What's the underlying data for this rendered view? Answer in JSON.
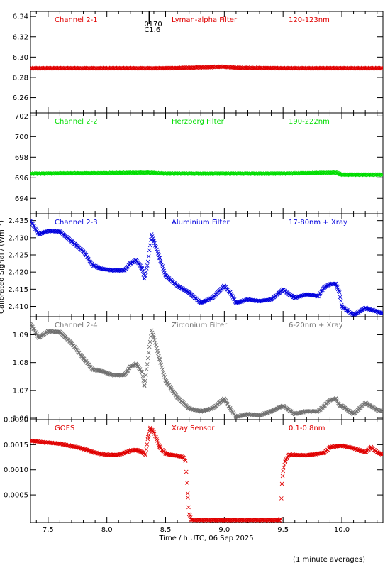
{
  "ylabel": "Calibrated Signal / (Wm⁻²)",
  "xlabel": "Time / h UTC, 06 Sep 2025",
  "footnote": "(1 minute averages)",
  "x_ticks": [
    "7.5",
    "8.0",
    "8.5",
    "9.0",
    "9.5",
    "10.0"
  ],
  "flare": {
    "time": 8.36,
    "label_top": "0170",
    "label_bottom": "C1.6"
  },
  "chart_data": [
    {
      "type": "scatter",
      "channel": "Channel 2-1",
      "filter": "Lyman-alpha Filter",
      "band": "120-123nm",
      "color": "#e00000",
      "xlim": [
        7.35,
        10.35
      ],
      "ylim": [
        6.245,
        6.345
      ],
      "yticks": [
        6.26,
        6.28,
        6.3,
        6.32,
        6.34
      ],
      "ytick_labels": [
        "6.26",
        "6.28",
        "6.30",
        "6.32",
        "6.34"
      ],
      "x": [
        7.35,
        10.35
      ],
      "y": [
        6.289,
        6.289
      ],
      "points": [
        [
          7.35,
          6.289
        ],
        [
          8.0,
          6.289
        ],
        [
          8.5,
          6.289
        ],
        [
          9.0,
          6.2905
        ],
        [
          9.1,
          6.2895
        ],
        [
          9.5,
          6.289
        ],
        [
          10.0,
          6.289
        ],
        [
          10.35,
          6.289
        ]
      ]
    },
    {
      "type": "scatter",
      "channel": "Channel 2-2",
      "filter": "Herzberg Filter",
      "band": "190-222nm",
      "color": "#00dd00",
      "xlim": [
        7.35,
        10.35
      ],
      "ylim": [
        692.5,
        702.3
      ],
      "yticks": [
        694,
        696,
        698,
        700,
        702
      ],
      "ytick_labels": [
        "694",
        "696",
        "698",
        "700",
        "702"
      ],
      "points": [
        [
          7.35,
          696.4
        ],
        [
          8.0,
          696.45
        ],
        [
          8.35,
          696.5
        ],
        [
          8.5,
          696.4
        ],
        [
          9.0,
          696.4
        ],
        [
          9.5,
          696.4
        ],
        [
          9.95,
          696.5
        ],
        [
          10.0,
          696.3
        ],
        [
          10.35,
          696.3
        ]
      ]
    },
    {
      "type": "scatter",
      "channel": "Channel 2-3",
      "filter": "Aluminium Filter",
      "band": "17-80nm + Xray",
      "color": "#0000dd",
      "xlim": [
        7.35,
        10.35
      ],
      "ylim": [
        2.407,
        2.437
      ],
      "yticks": [
        2.41,
        2.415,
        2.42,
        2.425,
        2.43,
        2.435
      ],
      "ytick_labels": [
        "2.410",
        "2.415",
        "2.420",
        "2.425",
        "2.430",
        "2.435"
      ],
      "points": [
        [
          7.35,
          2.435
        ],
        [
          7.42,
          2.431
        ],
        [
          7.5,
          2.432
        ],
        [
          7.6,
          2.4318
        ],
        [
          7.7,
          2.429
        ],
        [
          7.8,
          2.426
        ],
        [
          7.88,
          2.422
        ],
        [
          7.95,
          2.421
        ],
        [
          8.05,
          2.4205
        ],
        [
          8.15,
          2.4205
        ],
        [
          8.2,
          2.4225
        ],
        [
          8.25,
          2.4235
        ],
        [
          8.3,
          2.421
        ],
        [
          8.32,
          2.418
        ],
        [
          8.35,
          2.423
        ],
        [
          8.38,
          2.431
        ],
        [
          8.4,
          2.429
        ],
        [
          8.45,
          2.424
        ],
        [
          8.5,
          2.419
        ],
        [
          8.6,
          2.416
        ],
        [
          8.7,
          2.414
        ],
        [
          8.75,
          2.4125
        ],
        [
          8.8,
          2.411
        ],
        [
          8.9,
          2.4125
        ],
        [
          9.0,
          2.416
        ],
        [
          9.05,
          2.414
        ],
        [
          9.1,
          2.411
        ],
        [
          9.2,
          2.412
        ],
        [
          9.3,
          2.4115
        ],
        [
          9.4,
          2.412
        ],
        [
          9.5,
          2.415
        ],
        [
          9.55,
          2.4135
        ],
        [
          9.6,
          2.4125
        ],
        [
          9.7,
          2.4135
        ],
        [
          9.8,
          2.413
        ],
        [
          9.85,
          2.4155
        ],
        [
          9.9,
          2.4165
        ],
        [
          9.95,
          2.4165
        ],
        [
          9.98,
          2.414
        ],
        [
          10.0,
          2.41
        ],
        [
          10.1,
          2.4075
        ],
        [
          10.2,
          2.4095
        ],
        [
          10.3,
          2.4085
        ],
        [
          10.35,
          2.408
        ]
      ]
    },
    {
      "type": "scatter",
      "channel": "Channel 2-4",
      "filter": "Zirconium Filter",
      "band": "6-20nm + Xray",
      "color": "#707070",
      "xlim": [
        7.35,
        10.35
      ],
      "ylim": [
        1.0595,
        1.0965
      ],
      "yticks": [
        1.06,
        1.07,
        1.08,
        1.09
      ],
      "ytick_labels": [
        "1.06",
        "1.07",
        "1.08",
        "1.09"
      ],
      "points": [
        [
          7.35,
          1.094
        ],
        [
          7.42,
          1.089
        ],
        [
          7.5,
          1.0912
        ],
        [
          7.6,
          1.091
        ],
        [
          7.7,
          1.087
        ],
        [
          7.8,
          1.0815
        ],
        [
          7.88,
          1.0775
        ],
        [
          7.95,
          1.077
        ],
        [
          8.05,
          1.0755
        ],
        [
          8.15,
          1.0755
        ],
        [
          8.2,
          1.0785
        ],
        [
          8.25,
          1.0795
        ],
        [
          8.3,
          1.0765
        ],
        [
          8.32,
          1.0715
        ],
        [
          8.35,
          1.0815
        ],
        [
          8.38,
          1.0915
        ],
        [
          8.4,
          1.089
        ],
        [
          8.45,
          1.081
        ],
        [
          8.5,
          1.0735
        ],
        [
          8.6,
          1.0675
        ],
        [
          8.7,
          1.0635
        ],
        [
          8.75,
          1.063
        ],
        [
          8.8,
          1.0625
        ],
        [
          8.9,
          1.0635
        ],
        [
          9.0,
          1.067
        ],
        [
          9.05,
          1.0635
        ],
        [
          9.1,
          1.0605
        ],
        [
          9.2,
          1.0615
        ],
        [
          9.3,
          1.061
        ],
        [
          9.4,
          1.0625
        ],
        [
          9.5,
          1.0645
        ],
        [
          9.55,
          1.063
        ],
        [
          9.6,
          1.0615
        ],
        [
          9.7,
          1.0625
        ],
        [
          9.8,
          1.0625
        ],
        [
          9.85,
          1.0645
        ],
        [
          9.9,
          1.0665
        ],
        [
          9.95,
          1.067
        ],
        [
          9.98,
          1.0645
        ],
        [
          10.0,
          1.0645
        ],
        [
          10.1,
          1.0615
        ],
        [
          10.2,
          1.0655
        ],
        [
          10.3,
          1.063
        ],
        [
          10.35,
          1.0625
        ]
      ]
    },
    {
      "type": "scatter",
      "channel": "GOES",
      "filter": "Xray Sensor",
      "band": "0.1-0.8nm",
      "color": "#e00000",
      "xlim": [
        7.35,
        10.35
      ],
      "ylim": [
        -5e-05,
        0.002
      ],
      "yticks": [
        0.0005,
        0.001,
        0.0015,
        0.002
      ],
      "ytick_labels": [
        "0.0005",
        "0.0010",
        "0.0015",
        "0.0020"
      ],
      "points": [
        [
          7.35,
          0.00158
        ],
        [
          7.45,
          0.00155
        ],
        [
          7.6,
          0.00152
        ],
        [
          7.7,
          0.00147
        ],
        [
          7.8,
          0.00142
        ],
        [
          7.9,
          0.00134
        ],
        [
          8.0,
          0.0013
        ],
        [
          8.1,
          0.0013
        ],
        [
          8.2,
          0.00138
        ],
        [
          8.25,
          0.0014
        ],
        [
          8.3,
          0.00135
        ],
        [
          8.33,
          0.0013
        ],
        [
          8.35,
          0.00165
        ],
        [
          8.37,
          0.00183
        ],
        [
          8.4,
          0.00175
        ],
        [
          8.45,
          0.00145
        ],
        [
          8.5,
          0.00132
        ],
        [
          8.6,
          0.00128
        ],
        [
          8.65,
          0.00125
        ],
        [
          8.67,
          0.00118
        ],
        [
          8.69,
          0.00045
        ],
        [
          8.7,
          0.00012
        ],
        [
          8.72,
          0.0
        ],
        [
          9.0,
          0.0
        ],
        [
          9.47,
          0.0
        ],
        [
          9.48,
          2e-05
        ],
        [
          9.49,
          0.00072
        ],
        [
          9.5,
          0.00098
        ],
        [
          9.52,
          0.00118
        ],
        [
          9.55,
          0.0013
        ],
        [
          9.7,
          0.00129
        ],
        [
          9.85,
          0.00134
        ],
        [
          9.9,
          0.00145
        ],
        [
          10.0,
          0.00148
        ],
        [
          10.1,
          0.00143
        ],
        [
          10.2,
          0.00135
        ],
        [
          10.25,
          0.00145
        ],
        [
          10.3,
          0.00135
        ],
        [
          10.35,
          0.0013
        ]
      ]
    }
  ]
}
